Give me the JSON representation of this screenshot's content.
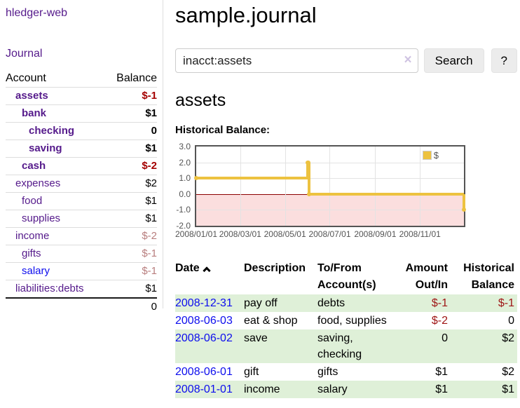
{
  "app_title": "hledger-web",
  "sidebar": {
    "journal_link": "Journal",
    "accounts_table": {
      "account_header": "Account",
      "balance_header": "Balance",
      "rows": [
        {
          "name": "assets",
          "balance": "$-1",
          "depth": 1,
          "emphasis": true,
          "balance_color": "negative-strong",
          "link_color": "purple"
        },
        {
          "name": "bank",
          "balance": "$1",
          "depth": 2,
          "emphasis": true,
          "balance_color": "normal",
          "link_color": "purple"
        },
        {
          "name": "checking",
          "balance": "0",
          "depth": 3,
          "emphasis": true,
          "balance_color": "normal",
          "link_color": "purple"
        },
        {
          "name": "saving",
          "balance": "$1",
          "depth": 3,
          "emphasis": true,
          "balance_color": "normal",
          "link_color": "purple"
        },
        {
          "name": "cash",
          "balance": "$-2",
          "depth": 2,
          "emphasis": true,
          "balance_color": "negative-strong",
          "link_color": "purple"
        },
        {
          "name": "expenses",
          "balance": "$2",
          "depth": 1,
          "emphasis": false,
          "balance_color": "normal",
          "link_color": "purple"
        },
        {
          "name": "food",
          "balance": "$1",
          "depth": 2,
          "emphasis": false,
          "balance_color": "normal",
          "link_color": "purple"
        },
        {
          "name": "supplies",
          "balance": "$1",
          "depth": 2,
          "emphasis": false,
          "balance_color": "normal",
          "link_color": "purple"
        },
        {
          "name": "income",
          "balance": "$-2",
          "depth": 1,
          "emphasis": false,
          "balance_color": "negative-muted",
          "link_color": "purple"
        },
        {
          "name": "gifts",
          "balance": "$-1",
          "depth": 2,
          "emphasis": false,
          "balance_color": "negative-muted",
          "link_color": "purple"
        },
        {
          "name": "salary",
          "balance": "$-1",
          "depth": 2,
          "emphasis": false,
          "balance_color": "negative-muted",
          "link_color": "blue"
        },
        {
          "name": "liabilities:debts",
          "balance": "$1",
          "depth": 1,
          "emphasis": false,
          "balance_color": "normal",
          "link_color": "purple"
        }
      ],
      "total": "0"
    }
  },
  "main": {
    "title": "sample.journal",
    "search": {
      "value": "inacct:assets",
      "placeholder": "",
      "clear_icon": "×",
      "search_button": "Search",
      "help_button": "?"
    },
    "account_heading": "assets",
    "chart_heading": "Historical Balance:"
  },
  "chart_data": {
    "type": "line",
    "style": "step",
    "title": "Historical Balance:",
    "series": [
      {
        "name": "$",
        "points": [
          {
            "date": "2008-01-01",
            "value": 1
          },
          {
            "date": "2008-06-01",
            "value": 2
          },
          {
            "date": "2008-06-02",
            "value": 2
          },
          {
            "date": "2008-06-03",
            "value": 0
          },
          {
            "date": "2008-12-31",
            "value": -1
          }
        ]
      }
    ],
    "xlim": [
      "2008-01-01",
      "2008-12-31"
    ],
    "ylim": [
      -2,
      3
    ],
    "y_ticks": [
      {
        "value": 3,
        "label": "3.0"
      },
      {
        "value": 2,
        "label": "2.0"
      },
      {
        "value": 1,
        "label": "1.0"
      },
      {
        "value": 0,
        "label": "0.0"
      },
      {
        "value": -1,
        "label": "-1.0"
      },
      {
        "value": -2,
        "label": "-2.0"
      }
    ],
    "x_ticks": [
      {
        "date": "2008-01-01",
        "label": "2008/01/01"
      },
      {
        "date": "2008-03-01",
        "label": "2008/03/01"
      },
      {
        "date": "2008-05-01",
        "label": "2008/05/01"
      },
      {
        "date": "2008-07-01",
        "label": "2008/07/01"
      },
      {
        "date": "2008-09-01",
        "label": "2008/09/01"
      },
      {
        "date": "2008-11-01",
        "label": "2008/11/01"
      }
    ],
    "grid": true,
    "legend_position": "top-right",
    "line_color": "#edc240",
    "zero_line_color": "#8b0000",
    "negative_region_color": "#fbdede"
  },
  "register": {
    "headers": {
      "date": "Date",
      "sort_icon": "chevron-up",
      "description": "Description",
      "accounts_line1": "To/From",
      "accounts_line2": "Account(s)",
      "amount_line1": "Amount",
      "amount_line2": "Out/In",
      "balance_line1": "Historical",
      "balance_line2": "Balance"
    },
    "rows": [
      {
        "date": "2008-12-31",
        "description": "pay off",
        "accounts": "debts",
        "amount": "$-1",
        "balance": "$-1",
        "amount_negative": true,
        "balance_negative": true,
        "shaded": true
      },
      {
        "date": "2008-06-03",
        "description": "eat & shop",
        "accounts": "food, supplies",
        "amount": "$-2",
        "balance": "0",
        "amount_negative": true,
        "balance_negative": false,
        "shaded": false
      },
      {
        "date": "2008-06-02",
        "description": "save",
        "accounts": "saving, checking",
        "amount": "0",
        "balance": "$2",
        "amount_negative": false,
        "balance_negative": false,
        "shaded": true
      },
      {
        "date": "2008-06-01",
        "description": "gift",
        "accounts": "gifts",
        "amount": "$1",
        "balance": "$2",
        "amount_negative": false,
        "balance_negative": false,
        "shaded": false
      },
      {
        "date": "2008-01-01",
        "description": "income",
        "accounts": "salary",
        "amount": "$1",
        "balance": "$1",
        "amount_negative": false,
        "balance_negative": false,
        "shaded": true
      }
    ]
  },
  "colors": {
    "link_purple": "#551a8b",
    "link_blue": "#0d0dee",
    "negative_strong": "#a40000",
    "negative_muted": "#b87e7e",
    "negative_table": "#9e1414",
    "row_shade_green": "#dff0d8",
    "chart_line_gold": "#edc240",
    "chart_negative_pink": "#fbdede",
    "chart_zero_line": "#8b0000",
    "chart_border": "#545454",
    "divider_gray": "#dddddd"
  }
}
